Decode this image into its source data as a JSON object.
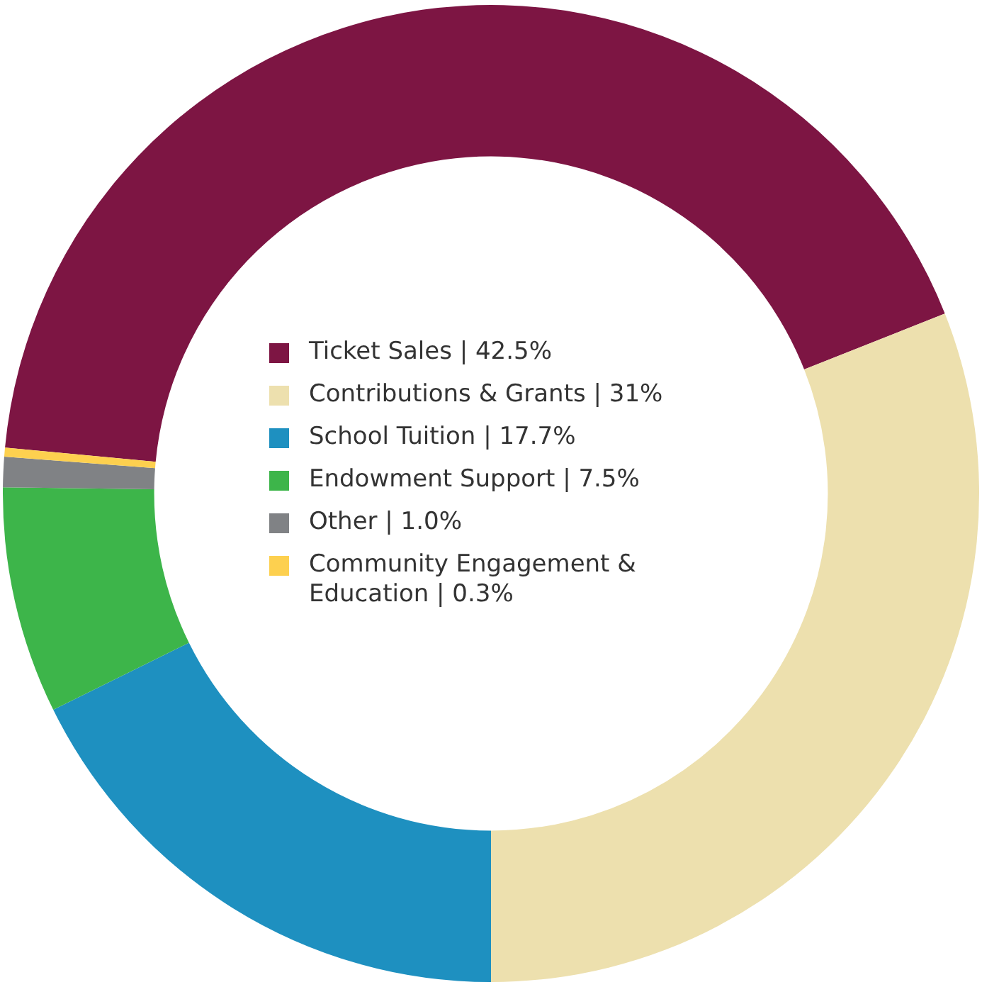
{
  "chart_data": {
    "type": "donut",
    "categories": [
      "Ticket Sales | 42.5%",
      "Contributions & Grants | 31%",
      "School Tuition | 17.7%",
      "Endowment Support | 7.5%",
      "Other | 1.0%",
      "Community Engagement & Education | 0.3%"
    ],
    "values": [
      42.5,
      31,
      17.7,
      7.5,
      1.0,
      0.3
    ],
    "colors": [
      "#7d1543",
      "#ede0ae",
      "#1e90c0",
      "#3db54a",
      "#808285",
      "#fdd04f"
    ],
    "legend": "center"
  }
}
